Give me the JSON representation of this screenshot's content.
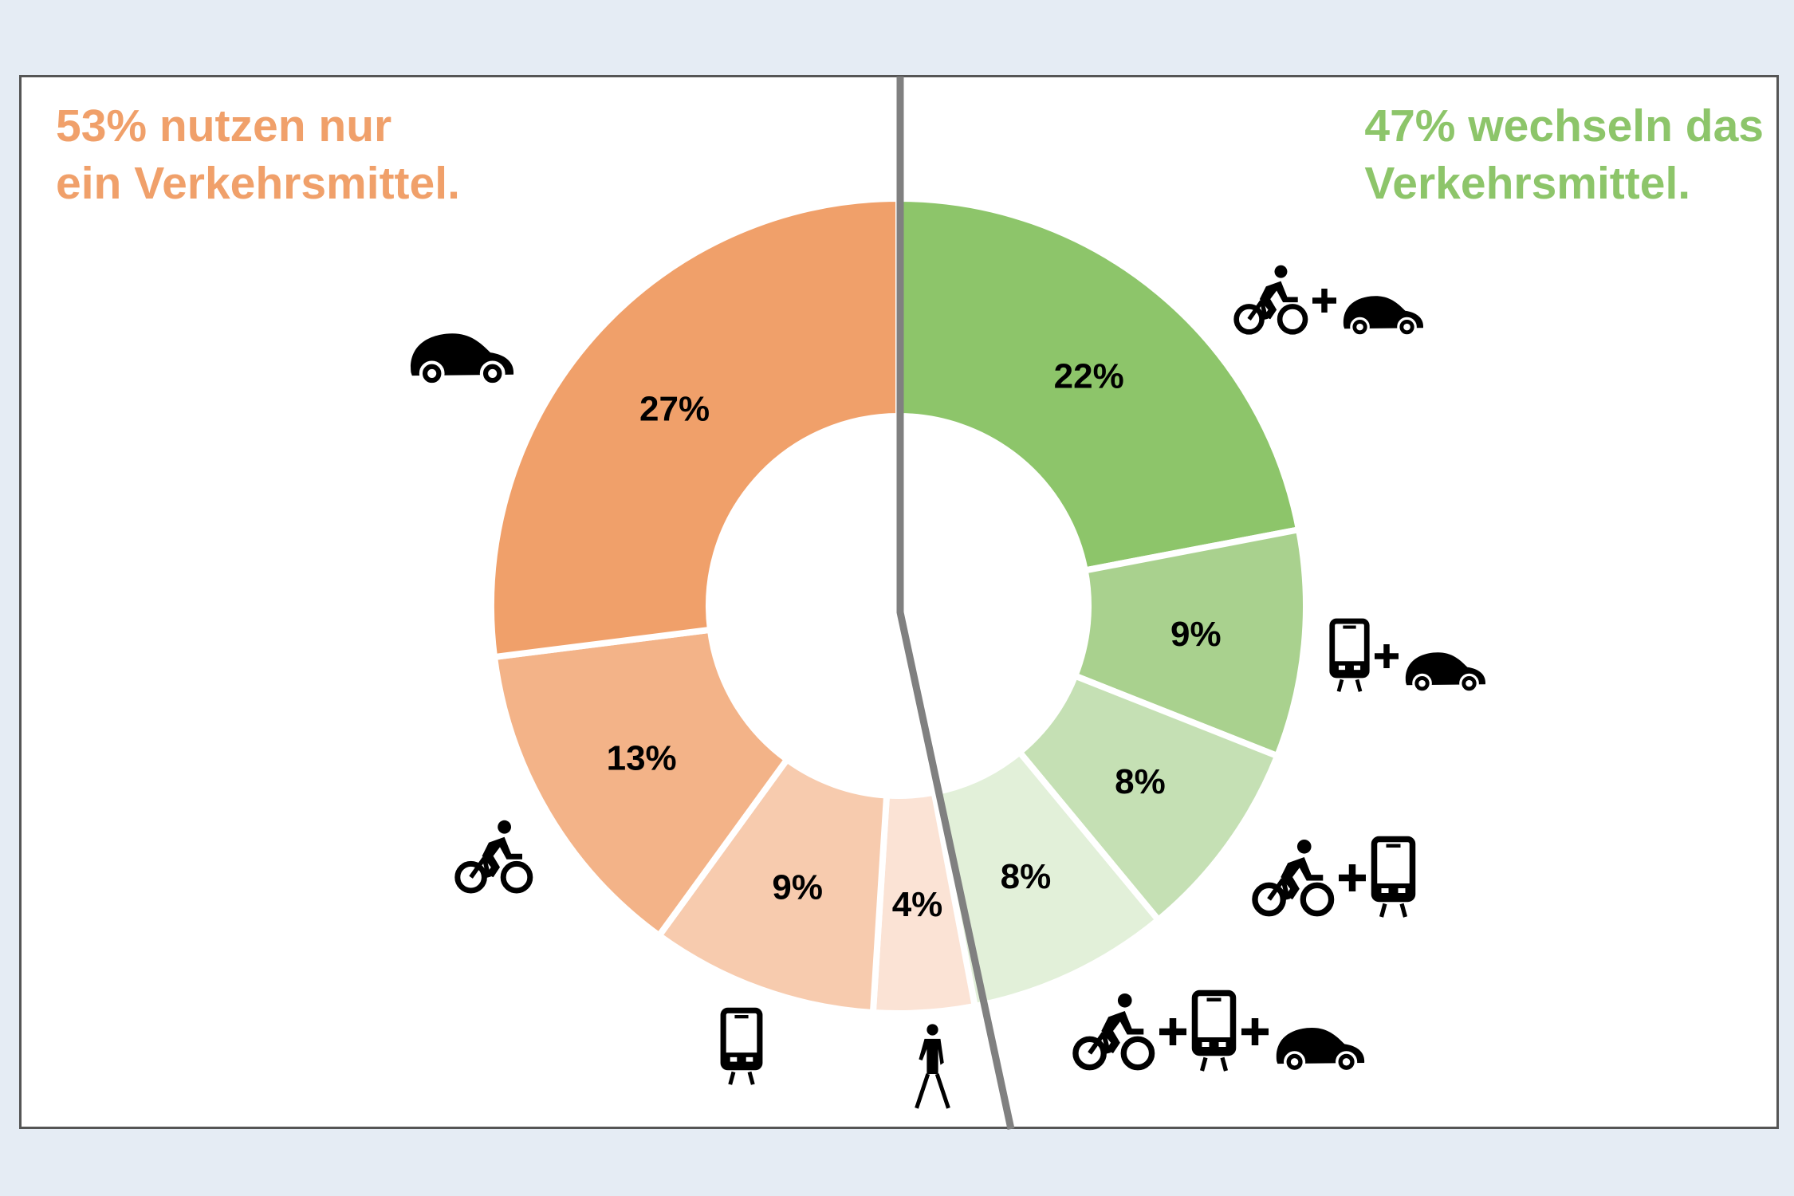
{
  "left_heading": {
    "line1": "53% nutzen nur",
    "line2": "ein Verkehrsmittel.",
    "color": "#F0A06A"
  },
  "right_heading": {
    "line1": "47% wechseln das",
    "line2": "Verkehrsmittel.",
    "color": "#8DC56A"
  },
  "chart_data": {
    "type": "pie",
    "variant": "donut",
    "title": "",
    "groups": [
      {
        "name": "nur ein Verkehrsmittel",
        "total": 53,
        "color": "#F0A06A"
      },
      {
        "name": "wechseln das Verkehrsmittel",
        "total": 47,
        "color": "#8DC56A"
      }
    ],
    "slices": [
      {
        "label": "22%",
        "value": 22,
        "group": "wechseln",
        "icons": [
          "bike",
          "plus",
          "car"
        ],
        "color": "#8DC56A"
      },
      {
        "label": "9%",
        "value": 9,
        "group": "wechseln",
        "icons": [
          "tram",
          "plus",
          "car"
        ],
        "color": "#A9D18E"
      },
      {
        "label": "8%",
        "value": 8,
        "group": "wechseln",
        "icons": [
          "bike",
          "plus",
          "tram"
        ],
        "color": "#C5E0B4"
      },
      {
        "label": "8%",
        "value": 8,
        "group": "wechseln",
        "icons": [
          "bike",
          "plus",
          "tram",
          "plus",
          "car"
        ],
        "color": "#E2F0D9"
      },
      {
        "label": "4%",
        "value": 4,
        "group": "nur ein",
        "icons": [
          "walker"
        ],
        "color": "#FBE3D5"
      },
      {
        "label": "9%",
        "value": 9,
        "group": "nur ein",
        "icons": [
          "tram"
        ],
        "color": "#F7CBAE"
      },
      {
        "label": "13%",
        "value": 13,
        "group": "nur ein",
        "icons": [
          "bike"
        ],
        "color": "#F3B388"
      },
      {
        "label": "27%",
        "value": 27,
        "group": "nur ein",
        "icons": [
          "car"
        ],
        "color": "#F0A06A"
      }
    ],
    "start": "top",
    "direction": "clockwise",
    "divider_color": "#808080"
  }
}
